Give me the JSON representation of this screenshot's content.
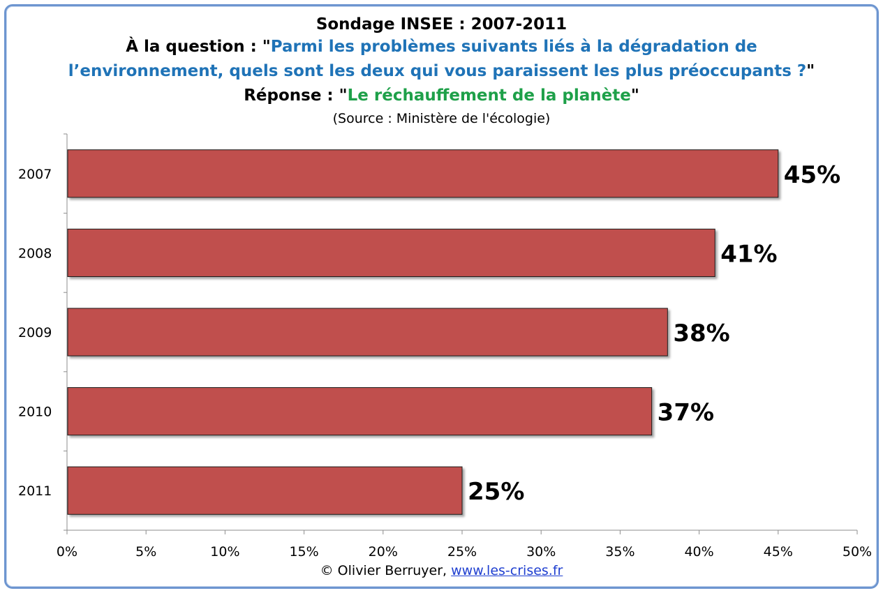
{
  "chart_data": {
    "type": "bar",
    "orientation": "horizontal",
    "title": "Sondage INSEE : 2007-2011",
    "question_prefix": "À la question : \"",
    "question_line1": "Parmi les problèmes suivants liés à la dégradation de",
    "question_line2": "l’environnement, quels sont les deux qui vous paraissent les plus préoccupants ?",
    "question_suffix": "\"",
    "answer_prefix": "Réponse : \"",
    "answer": "Le réchauffement de la planète",
    "answer_suffix": "\"",
    "source": "(Source : Ministère de l'écologie)",
    "categories": [
      "2007",
      "2008",
      "2009",
      "2010",
      "2011"
    ],
    "values": [
      45,
      41,
      38,
      37,
      25
    ],
    "value_labels": [
      "45%",
      "41%",
      "38%",
      "37%",
      "25%"
    ],
    "xlim": [
      0,
      50
    ],
    "xticks": [
      0,
      5,
      10,
      15,
      20,
      25,
      30,
      35,
      40,
      45,
      50
    ],
    "xtick_labels": [
      "0%",
      "5%",
      "10%",
      "15%",
      "20%",
      "25%",
      "30%",
      "35%",
      "40%",
      "45%",
      "50%"
    ],
    "grid": false,
    "bar_color": "#c0504d",
    "question_color": "#1f73b7",
    "answer_color": "#1ea049"
  },
  "credit": {
    "text": "© Olivier Berruyer, ",
    "link": "www.les-crises.fr"
  }
}
